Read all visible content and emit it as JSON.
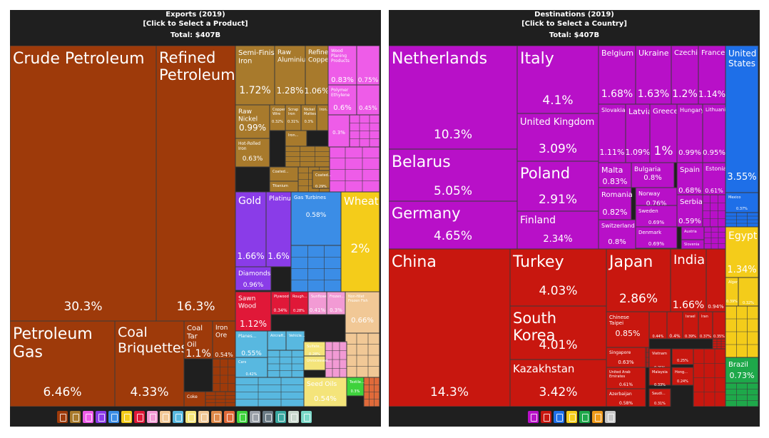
{
  "exports": {
    "title": "Exports (2019)",
    "subtitle": "[Click to Select a Product]",
    "total": "Total: $407B"
  },
  "destinations": {
    "title": "Destinations (2019)",
    "subtitle": "[Click to Select a Country]",
    "total": "Total: $407B"
  },
  "chart_data": [
    {
      "type": "treemap",
      "title": "Exports (2019)",
      "total": "$407B",
      "categories": [
        {
          "name": "Crude Petroleum",
          "share": "30.3%",
          "color": "#9e3a0a"
        },
        {
          "name": "Refined Petroleum",
          "share": "16.3%",
          "color": "#9e3a0a"
        },
        {
          "name": "Petroleum Gas",
          "share": "6.46%",
          "color": "#9e3a0a"
        },
        {
          "name": "Coal Briquettes",
          "share": "4.33%",
          "color": "#9e3a0a"
        },
        {
          "name": "Coal Tar Oil",
          "share": "1.1%",
          "color": "#9e3a0a"
        },
        {
          "name": "Iron Ore",
          "share": "0.54%",
          "color": "#9e3a0a"
        },
        {
          "name": "Coke",
          "share": "",
          "color": "#9e3a0a"
        },
        {
          "name": "Semi-Finished Iron",
          "share": "1.72%",
          "color": "#a87a2c"
        },
        {
          "name": "Raw Aluminium",
          "share": "1.28%",
          "color": "#a87a2c"
        },
        {
          "name": "Refined Copper",
          "share": "1.06%",
          "color": "#a87a2c"
        },
        {
          "name": "Raw Nickel",
          "share": "0.99%",
          "color": "#a87a2c"
        },
        {
          "name": "Copper Wire",
          "share": "0.32%",
          "color": "#a87a2c"
        },
        {
          "name": "Scrap Iron",
          "share": "0.31%",
          "color": "#a87a2c"
        },
        {
          "name": "Nickel Mattes",
          "share": "0.3%",
          "color": "#a87a2c"
        },
        {
          "name": "Iron...",
          "share": "",
          "color": "#a87a2c"
        },
        {
          "name": "Hot-Rolled Iron",
          "share": "0.63%",
          "color": "#a87a2c"
        },
        {
          "name": "Iron...",
          "share": "",
          "color": "#a87a2c"
        },
        {
          "name": "Coated...",
          "share": "",
          "color": "#a87a2c"
        },
        {
          "name": "Titanium",
          "share": "",
          "color": "#a87a2c"
        },
        {
          "name": "Coated...",
          "share": "0.29%",
          "color": "#a87a2c"
        },
        {
          "name": "Wood Planing Products",
          "share": "0.83%",
          "color": "#ee5ce8"
        },
        {
          "name": "",
          "share": "0.75%",
          "color": "#ee5ce8"
        },
        {
          "name": "Polymer Ethylene",
          "share": "0.6%",
          "color": "#ee5ce8"
        },
        {
          "name": "",
          "share": "0.45%",
          "color": "#ee5ce8"
        },
        {
          "name": "",
          "share": "0.3%",
          "color": "#ee5ce8"
        },
        {
          "name": "Gold",
          "share": "1.66%",
          "color": "#8a3ce8"
        },
        {
          "name": "Platinum",
          "share": "1.6%",
          "color": "#8a3ce8"
        },
        {
          "name": "Diamonds",
          "share": "0.96%",
          "color": "#8a3ce8"
        },
        {
          "name": "Gas Turbines",
          "share": "0.58%",
          "color": "#3b8de6"
        },
        {
          "name": "Wheat",
          "share": "2%",
          "color": "#f4cc1a"
        },
        {
          "name": "Sawn Wood",
          "share": "1.12%",
          "color": "#e01838"
        },
        {
          "name": "Plywood",
          "share": "0.34%",
          "color": "#e01838"
        },
        {
          "name": "Rough...",
          "share": "0.28%",
          "color": "#e01838"
        },
        {
          "name": "Sunflower...",
          "share": "0.41%",
          "color": "#f29ad4"
        },
        {
          "name": "Frozen...",
          "share": "0.3%",
          "color": "#f29ad4"
        },
        {
          "name": "Non-fillet Frozen Fish",
          "share": "0.66%",
          "color": "#f1c896"
        },
        {
          "name": "Planes...",
          "share": "0.55%",
          "color": "#58b8e0"
        },
        {
          "name": "Aircraft...",
          "share": "",
          "color": "#58b8e0"
        },
        {
          "name": "Vehicle...",
          "share": "",
          "color": "#58b8e0"
        },
        {
          "name": "Cars",
          "share": "0.42%",
          "color": "#58b8e0"
        },
        {
          "name": "Sulfate...",
          "share": "0.28%",
          "color": "#f4e47a"
        },
        {
          "name": "Unrocessed...",
          "share": "",
          "color": "#f4e47a"
        },
        {
          "name": "Seed Oils",
          "share": "0.54%",
          "color": "#f4e47a"
        },
        {
          "name": "Textile...",
          "share": "0.3%",
          "color": "#3ed23c"
        }
      ]
    },
    {
      "type": "treemap",
      "title": "Destinations (2019)",
      "total": "$407B",
      "categories": [
        {
          "name": "Netherlands",
          "share": "10.3%",
          "color": "#b810c8"
        },
        {
          "name": "Italy",
          "share": "4.1%",
          "color": "#b810c8"
        },
        {
          "name": "Belgium",
          "share": "1.68%",
          "color": "#b810c8"
        },
        {
          "name": "Ukraine",
          "share": "1.63%",
          "color": "#b810c8"
        },
        {
          "name": "Czechia",
          "share": "1.2%",
          "color": "#b810c8"
        },
        {
          "name": "France",
          "share": "1.14%",
          "color": "#b810c8"
        },
        {
          "name": "United Kingdom",
          "share": "3.09%",
          "color": "#b810c8"
        },
        {
          "name": "Slovakia",
          "share": "1.11%",
          "color": "#b810c8"
        },
        {
          "name": "Latvia",
          "share": "1.09%",
          "color": "#b810c8"
        },
        {
          "name": "Greece",
          "share": "1%",
          "color": "#b810c8"
        },
        {
          "name": "Hungary",
          "share": "0.99%",
          "color": "#b810c8"
        },
        {
          "name": "Lithuania",
          "share": "0.95%",
          "color": "#b810c8"
        },
        {
          "name": "Belarus",
          "share": "5.05%",
          "color": "#b810c8"
        },
        {
          "name": "Poland",
          "share": "2.91%",
          "color": "#b810c8"
        },
        {
          "name": "Malta",
          "share": "0.83%",
          "color": "#b810c8"
        },
        {
          "name": "Bulgaria",
          "share": "0.8%",
          "color": "#b810c8"
        },
        {
          "name": "Spain",
          "share": "0.68%",
          "color": "#b810c8"
        },
        {
          "name": "Estonia",
          "share": "0.61%",
          "color": "#b810c8"
        },
        {
          "name": "Romania",
          "share": "0.82%",
          "color": "#b810c8"
        },
        {
          "name": "Norway",
          "share": "0.76%",
          "color": "#b810c8"
        },
        {
          "name": "Serbia",
          "share": "0.59%",
          "color": "#b810c8"
        },
        {
          "name": "Germany",
          "share": "4.65%",
          "color": "#b810c8"
        },
        {
          "name": "Finland",
          "share": "2.34%",
          "color": "#b810c8"
        },
        {
          "name": "Sweden",
          "share": "0.69%",
          "color": "#b810c8"
        },
        {
          "name": "Switzerland",
          "share": "0.8%",
          "color": "#b810c8"
        },
        {
          "name": "Denmark",
          "share": "0.69%",
          "color": "#b810c8"
        },
        {
          "name": "Austria",
          "share": "",
          "color": "#b810c8"
        },
        {
          "name": "Slovenia",
          "share": "",
          "color": "#b810c8"
        },
        {
          "name": "United States",
          "share": "3.55%",
          "color": "#1e6fe8"
        },
        {
          "name": "Mexico",
          "share": "0.37%",
          "color": "#1e6fe8"
        },
        {
          "name": "Egypt",
          "share": "1.34%",
          "color": "#f4cc1a"
        },
        {
          "name": "Algeria",
          "share": "0.39%",
          "color": "#f4cc1a"
        },
        {
          "name": "",
          "share": "0.32%",
          "color": "#f4cc1a"
        },
        {
          "name": "Brazil",
          "share": "0.73%",
          "color": "#1ea84a"
        },
        {
          "name": "China",
          "share": "14.3%",
          "color": "#c8170f"
        },
        {
          "name": "Turkey",
          "share": "4.03%",
          "color": "#c8170f"
        },
        {
          "name": "South Korea",
          "share": "4.01%",
          "color": "#c8170f"
        },
        {
          "name": "Kazakhstan",
          "share": "3.42%",
          "color": "#c8170f"
        },
        {
          "name": "Japan",
          "share": "2.86%",
          "color": "#c8170f"
        },
        {
          "name": "India",
          "share": "1.66%",
          "color": "#c8170f"
        },
        {
          "name": "",
          "share": "0.94%",
          "color": "#c8170f"
        },
        {
          "name": "Chinese Taipei",
          "share": "0.85%",
          "color": "#c8170f"
        },
        {
          "name": "",
          "share": "0.44%",
          "color": "#c8170f"
        },
        {
          "name": "",
          "share": "0.4%",
          "color": "#c8170f"
        },
        {
          "name": "Israel",
          "share": "0.39%",
          "color": "#c8170f"
        },
        {
          "name": "Iran",
          "share": "0.37%",
          "color": "#c8170f"
        },
        {
          "name": "",
          "share": "0.35%",
          "color": "#c8170f"
        },
        {
          "name": "Singapore",
          "share": "0.63%",
          "color": "#c8170f"
        },
        {
          "name": "Vietnam",
          "share": "0.35%",
          "color": "#c8170f"
        },
        {
          "name": "",
          "share": "0.25%",
          "color": "#c8170f"
        },
        {
          "name": "United Arab Emirates",
          "share": "0.61%",
          "color": "#c8170f"
        },
        {
          "name": "Malaysia",
          "share": "0.33%",
          "color": "#c8170f"
        },
        {
          "name": "Hong...",
          "share": "0.24%",
          "color": "#c8170f"
        },
        {
          "name": "Azerbaijan",
          "share": "0.58%",
          "color": "#c8170f"
        },
        {
          "name": "Saudi...",
          "share": "0.31%",
          "color": "#c8170f"
        }
      ]
    }
  ],
  "footer": {
    "export_icons": [
      {
        "name": "mineral-products-icon",
        "color": "#9e3a0a"
      },
      {
        "name": "metals-icon",
        "color": "#a87a2c"
      },
      {
        "name": "chemical-products-icon",
        "color": "#ee5ce8"
      },
      {
        "name": "precious-metals-icon",
        "color": "#8a3ce8"
      },
      {
        "name": "machines-icon",
        "color": "#3b8de6"
      },
      {
        "name": "vegetable-products-icon",
        "color": "#f4cc1a"
      },
      {
        "name": "wood-products-icon",
        "color": "#e01838"
      },
      {
        "name": "plastics-icon",
        "color": "#f29ad4"
      },
      {
        "name": "animal-products-icon",
        "color": "#f1c896"
      },
      {
        "name": "transportation-icon",
        "color": "#58b8e0"
      },
      {
        "name": "foodstuffs-icon",
        "color": "#f4e47a"
      },
      {
        "name": "paper-goods-icon",
        "color": "#f1c896"
      },
      {
        "name": "instruments-icon",
        "color": "#e08a4a"
      },
      {
        "name": "stone-and-glass-icon",
        "color": "#e06a3a"
      },
      {
        "name": "textiles-icon",
        "color": "#3ed23c"
      },
      {
        "name": "miscellaneous-icon",
        "color": "#9aa0a8"
      },
      {
        "name": "footwear-icon",
        "color": "#6a7a84"
      },
      {
        "name": "weapons-icon",
        "color": "#3aa8a0"
      },
      {
        "name": "animal-hides-icon",
        "color": "#c8d8cc"
      },
      {
        "name": "arts-and-antiques-icon",
        "color": "#7ad8c8"
      }
    ],
    "destination_icons": [
      {
        "name": "europe-icon",
        "color": "#b810c8"
      },
      {
        "name": "asia-icon",
        "color": "#c8170f"
      },
      {
        "name": "north-america-icon",
        "color": "#1e6fe8"
      },
      {
        "name": "africa-icon",
        "color": "#f4cc1a"
      },
      {
        "name": "south-america-icon",
        "color": "#1ea84a"
      },
      {
        "name": "oceania-icon",
        "color": "#f09a1a"
      },
      {
        "name": "other-icon",
        "color": "#c8c8c8"
      }
    ]
  }
}
